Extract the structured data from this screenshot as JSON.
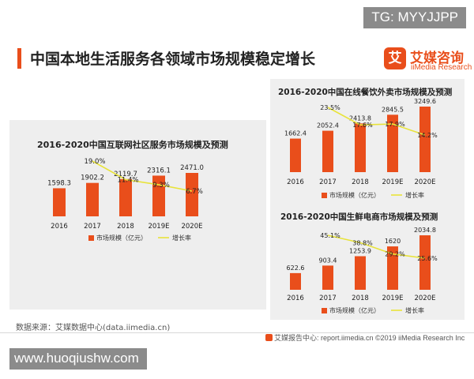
{
  "tg_badge": "TG: MYYJJPP",
  "page_title": "中国本地生活服务各领域市场规模稳定增长",
  "brand": {
    "logo_char": "艾",
    "name": "艾媒咨询",
    "sub": "iiMedia Research"
  },
  "source": "数据来源：艾媒数据中心(data.iimedia.cn)",
  "footer": "艾媒报告中心: report.iimedia.cn   ©2019  iiMedia Research  Inc",
  "watermark": "www.huoqiushw.com",
  "colors": {
    "bar": "#e94e1b",
    "line": "#e8e33a",
    "accent": "#e94e1b"
  },
  "chart_data": [
    {
      "type": "bar",
      "title": "2016-2020中国互联网社区服务市场规模及预测",
      "categories": [
        "2016",
        "2017",
        "2018",
        "2019E",
        "2020E"
      ],
      "series": [
        {
          "name": "市场规模（亿元）",
          "values": [
            1598.3,
            1902.2,
            2119.7,
            2316.1,
            2471.0
          ],
          "labels": [
            "1598.3",
            "1902.2",
            "2119.7",
            "2316.1",
            "2471.0"
          ]
        },
        {
          "name": "增长率",
          "type": "line",
          "values": [
            null,
            19.0,
            11.4,
            9.3,
            6.7
          ],
          "labels": [
            "",
            "19.0%",
            "11.4%",
            "9.3%",
            "6.7%"
          ]
        }
      ],
      "legend_position": "bottom"
    },
    {
      "type": "bar",
      "title": "2016-2020中国在线餐饮外卖市场规模及预测",
      "categories": [
        "2016",
        "2017",
        "2018",
        "2019E",
        "2020E"
      ],
      "series": [
        {
          "name": "市场规模（亿元）",
          "values": [
            1662.4,
            2052.4,
            2413.8,
            2845.5,
            3249.6
          ],
          "labels": [
            "1662.4",
            "2052.4",
            "2413.8",
            "2845.5",
            "3249.6"
          ]
        },
        {
          "name": "增长率",
          "type": "line",
          "values": [
            null,
            23.5,
            17.6,
            17.9,
            14.2
          ],
          "labels": [
            "",
            "23.5%",
            "17.6%",
            "17.9%",
            "14.2%"
          ]
        }
      ],
      "legend_position": "bottom"
    },
    {
      "type": "bar",
      "title": "2016-2020中国生鲜电商市场规模及预测",
      "categories": [
        "2016",
        "2017",
        "2018",
        "2019E",
        "2020E"
      ],
      "series": [
        {
          "name": "市场规模（亿元）",
          "values": [
            622.6,
            903.4,
            1253.9,
            1620,
            2034.8
          ],
          "labels": [
            "622.6",
            "903.4",
            "1253.9",
            "1620",
            "2034.8"
          ]
        },
        {
          "name": "增长率",
          "type": "line",
          "values": [
            null,
            45.1,
            38.8,
            29.2,
            25.6
          ],
          "labels": [
            "",
            "45.1%",
            "38.8%",
            "29.2%",
            "25.6%"
          ]
        }
      ],
      "legend_position": "bottom"
    }
  ]
}
